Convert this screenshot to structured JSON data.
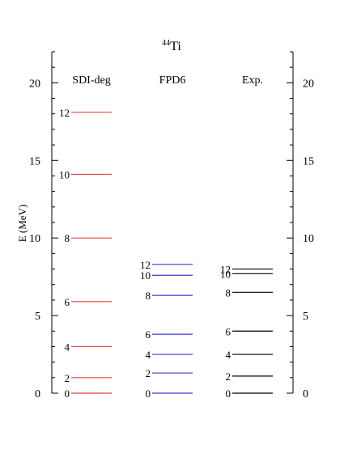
{
  "chart_data": {
    "type": "level-scheme",
    "title": "⁴⁴Ti",
    "title_parts": {
      "superscript": "44",
      "base": "Ti"
    },
    "ylabel": "E (MeV)",
    "ylim": [
      0,
      22
    ],
    "yticks": [
      0,
      5,
      10,
      15,
      20
    ],
    "series": [
      {
        "name": "SDI-deg",
        "color": "#e8423f",
        "levels": [
          {
            "label": "0",
            "energy": 0.0
          },
          {
            "label": "2",
            "energy": 1.0
          },
          {
            "label": "4",
            "energy": 3.0
          },
          {
            "label": "6",
            "energy": 5.9
          },
          {
            "label": "8",
            "energy": 10.0
          },
          {
            "label": "10",
            "energy": 14.1
          },
          {
            "label": "12",
            "energy": 18.1
          }
        ]
      },
      {
        "name": "FPD6",
        "color": "#3c3cc8",
        "levels": [
          {
            "label": "0",
            "energy": 0.0
          },
          {
            "label": "2",
            "energy": 1.3
          },
          {
            "label": "4",
            "energy": 2.5
          },
          {
            "label": "6",
            "energy": 3.8
          },
          {
            "label": "8",
            "energy": 6.3
          },
          {
            "label": "10",
            "energy": 7.6
          },
          {
            "label": "12",
            "energy": 8.3
          }
        ]
      },
      {
        "name": "Exp.",
        "color": "#000000",
        "levels": [
          {
            "label": "0",
            "energy": 0.0
          },
          {
            "label": "2",
            "energy": 1.1
          },
          {
            "label": "4",
            "energy": 2.5
          },
          {
            "label": "6",
            "energy": 4.0
          },
          {
            "label": "8",
            "energy": 6.5
          },
          {
            "label": "10",
            "energy": 7.7
          },
          {
            "label": "12",
            "energy": 8.0
          }
        ]
      }
    ]
  }
}
